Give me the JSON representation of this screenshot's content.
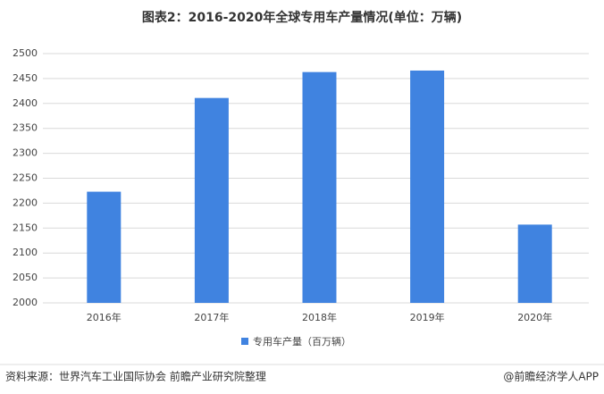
{
  "chart_data": {
    "type": "bar",
    "title": "图表2：2016-2020年全球专用车产量情况(单位：万辆)",
    "categories": [
      "2016年",
      "2017年",
      "2018年",
      "2019年",
      "2020年"
    ],
    "series": [
      {
        "name": "专用车产量（百万辆）",
        "color": "#4083e0",
        "values": [
          2223,
          2411,
          2463,
          2466,
          2157
        ]
      }
    ],
    "ylim": [
      2000,
      2500
    ],
    "yticks": [
      2000,
      2050,
      2100,
      2150,
      2200,
      2250,
      2300,
      2350,
      2400,
      2450,
      2500
    ],
    "grid": true,
    "legend": "bottom"
  },
  "footer": {
    "source": "资料来源：世界汽车工业国际协会 前瞻产业研究院整理",
    "brand": "@前瞻经济学人APP"
  }
}
